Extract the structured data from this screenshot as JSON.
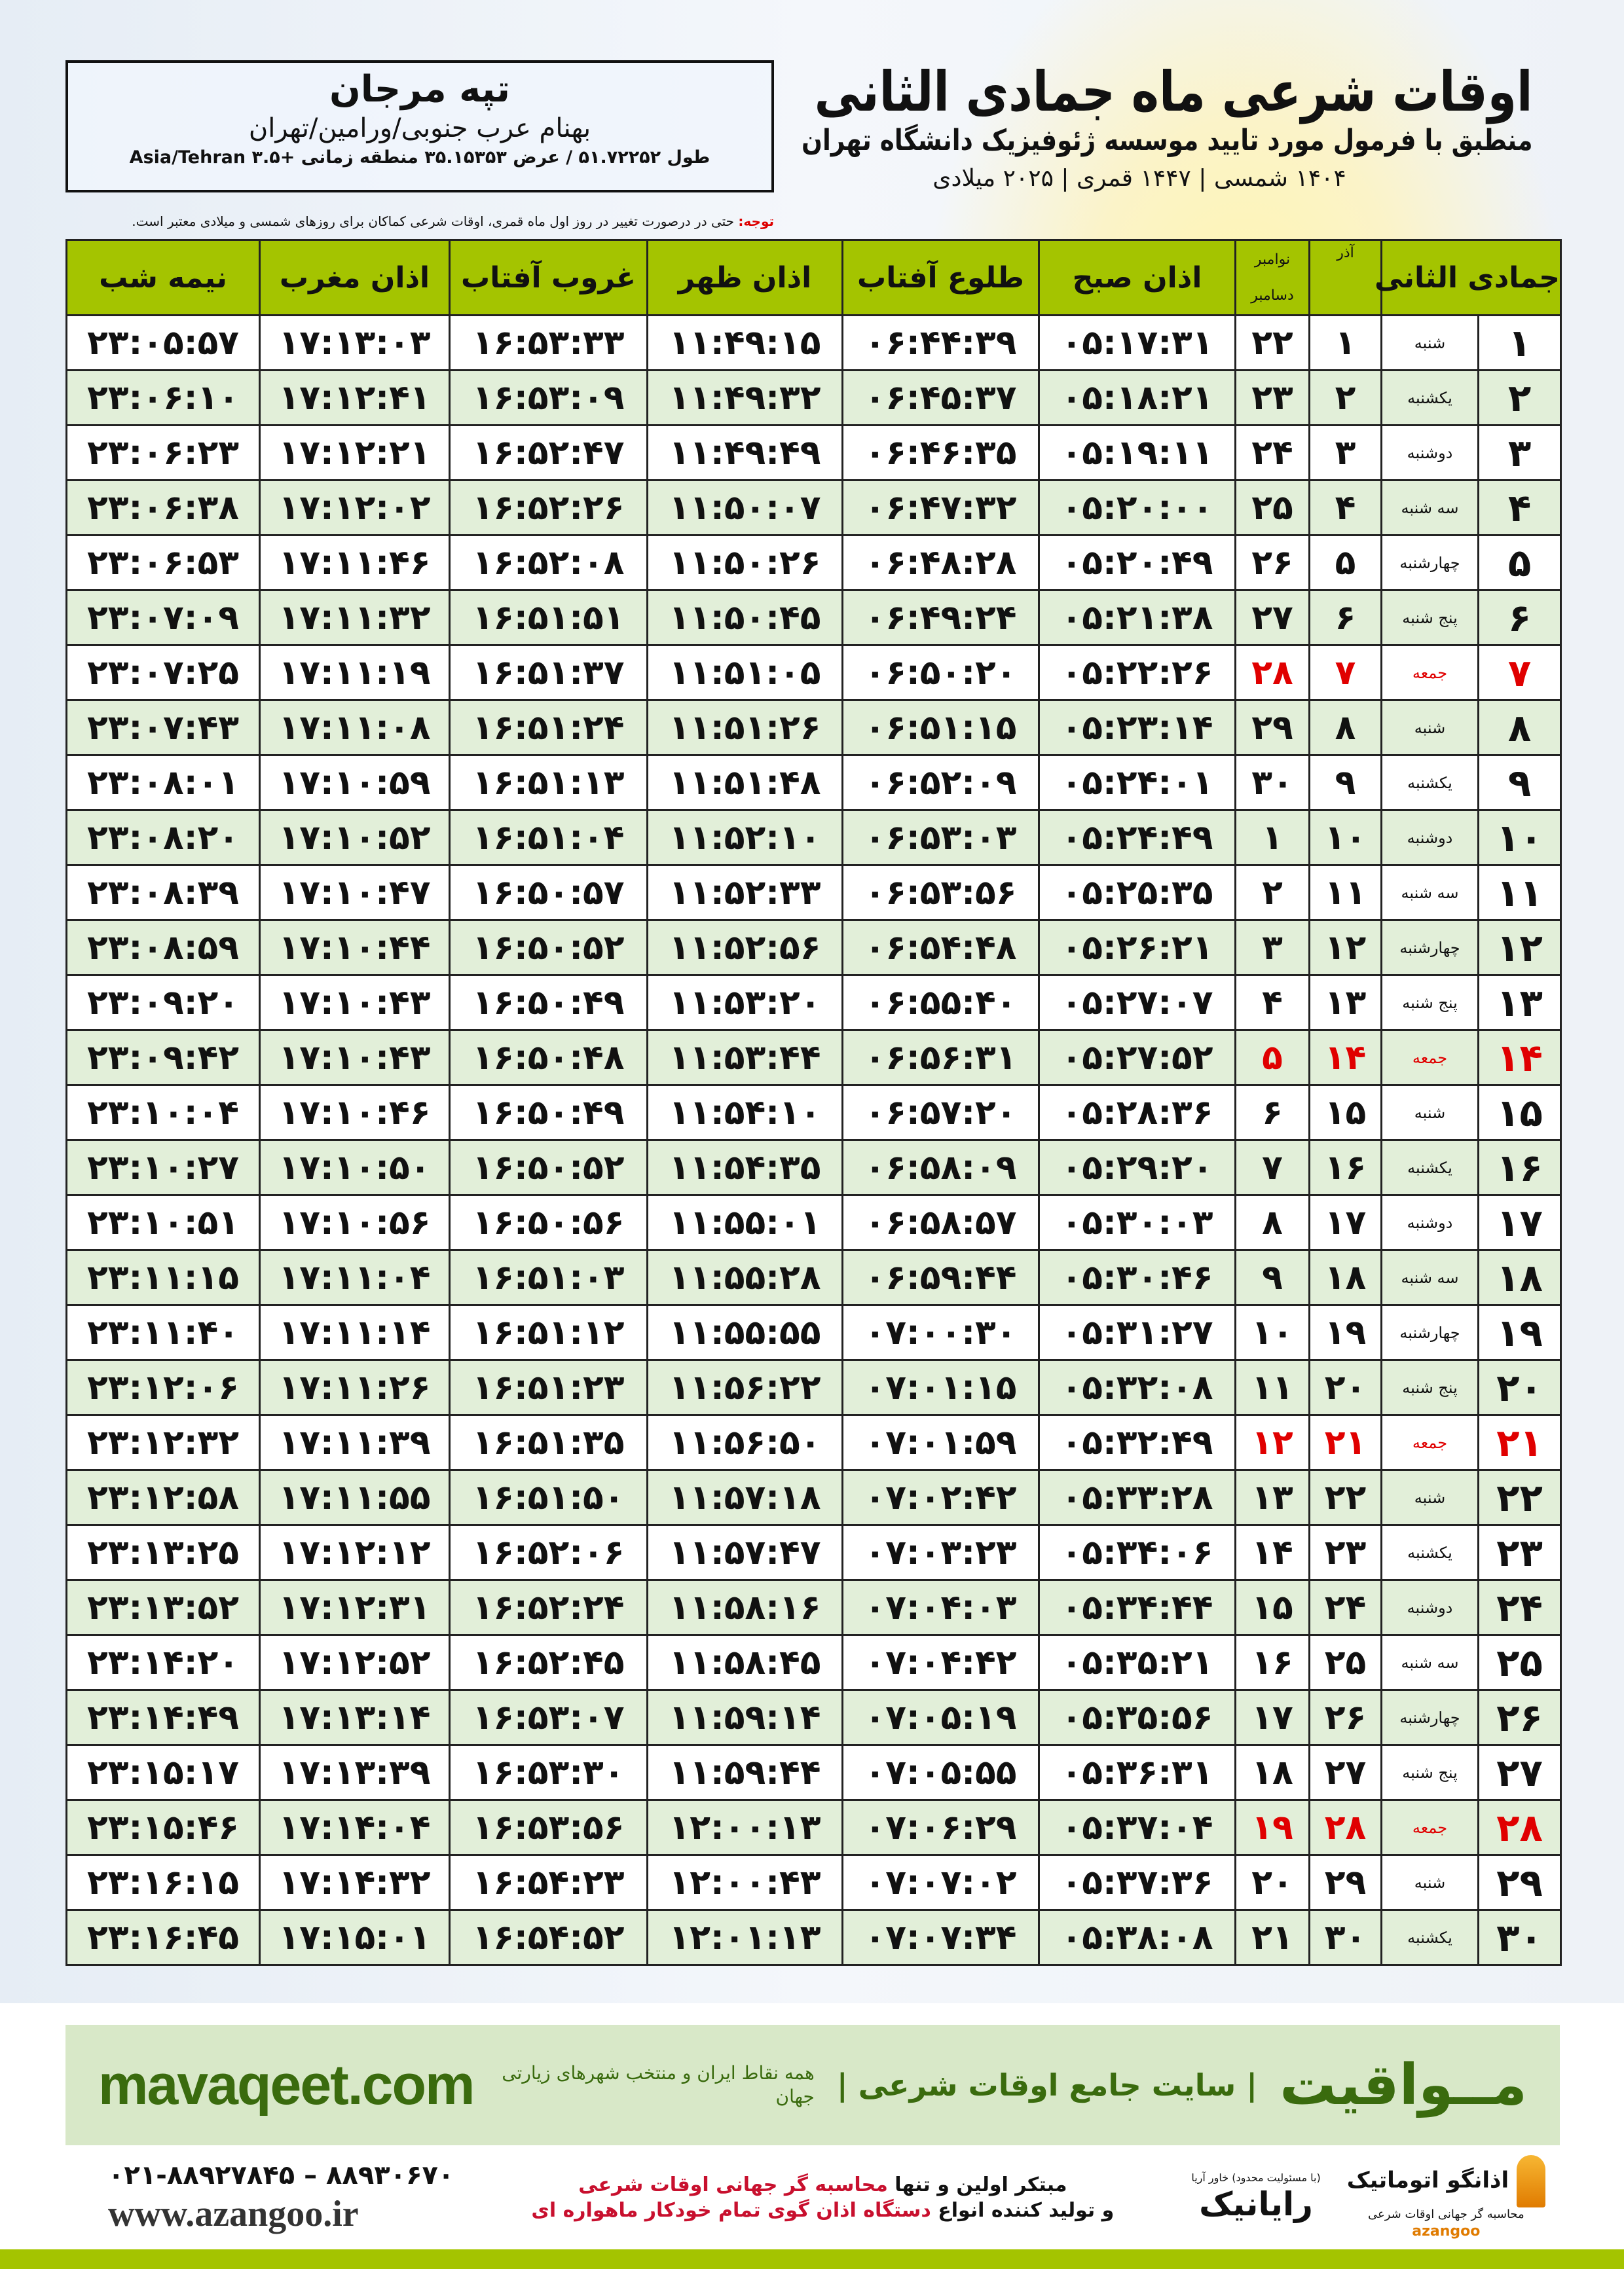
{
  "header": {
    "title": "اوقات شرعی ماه جمادی الثانی",
    "subtitle": "منطبق با فرمول مورد تایید موسسه ژئوفیزیک دانشگاه تهران",
    "years": "۱۴۰۴ شمسی | ۱۴۴۷ قمری | ۲۰۲۵ میلادی"
  },
  "location": {
    "city": "تپه مرجان",
    "region": "بهنام عرب جنوبی/ورامین/تهران",
    "coords": "طول ۵۱.۷۲۲۵۲ / عرض ۳۵.۱۵۳۵۳ منطقه زمانی +۳.۵ Asia/Tehran"
  },
  "note": {
    "label": "توجه:",
    "text": " حتی در درصورت تغییر در روز اول ماه قمری، اوقات شرعی کماکان برای روزهای شمسی و میلادی معتبر است."
  },
  "table": {
    "headers": {
      "hijri": "جمادی الثانی",
      "azar": "آذر",
      "greg_top": "نوامبر",
      "greg_bottom": "دسامبر",
      "sobh": "اذان صبح",
      "tolu": "طلوع آفتاب",
      "zohr": "اذان ظهر",
      "ghorub": "غروب آفتاب",
      "maghrib": "اذان مغرب",
      "nime": "نیمه شب"
    },
    "friday_color": "#e00000",
    "rows": [
      [
        "۱",
        "شنبه",
        "۱",
        "۲۲",
        "۰۵:۱۷:۳۱",
        "۰۶:۴۴:۳۹",
        "۱۱:۴۹:۱۵",
        "۱۶:۵۳:۳۳",
        "۱۷:۱۳:۰۳",
        "۲۳:۰۵:۵۷"
      ],
      [
        "۲",
        "یکشنبه",
        "۲",
        "۲۳",
        "۰۵:۱۸:۲۱",
        "۰۶:۴۵:۳۷",
        "۱۱:۴۹:۳۲",
        "۱۶:۵۳:۰۹",
        "۱۷:۱۲:۴۱",
        "۲۳:۰۶:۱۰"
      ],
      [
        "۳",
        "دوشنبه",
        "۳",
        "۲۴",
        "۰۵:۱۹:۱۱",
        "۰۶:۴۶:۳۵",
        "۱۱:۴۹:۴۹",
        "۱۶:۵۲:۴۷",
        "۱۷:۱۲:۲۱",
        "۲۳:۰۶:۲۳"
      ],
      [
        "۴",
        "سه شنبه",
        "۴",
        "۲۵",
        "۰۵:۲۰:۰۰",
        "۰۶:۴۷:۳۲",
        "۱۱:۵۰:۰۷",
        "۱۶:۵۲:۲۶",
        "۱۷:۱۲:۰۲",
        "۲۳:۰۶:۳۸"
      ],
      [
        "۵",
        "چهارشنبه",
        "۵",
        "۲۶",
        "۰۵:۲۰:۴۹",
        "۰۶:۴۸:۲۸",
        "۱۱:۵۰:۲۶",
        "۱۶:۵۲:۰۸",
        "۱۷:۱۱:۴۶",
        "۲۳:۰۶:۵۳"
      ],
      [
        "۶",
        "پنج شنبه",
        "۶",
        "۲۷",
        "۰۵:۲۱:۳۸",
        "۰۶:۴۹:۲۴",
        "۱۱:۵۰:۴۵",
        "۱۶:۵۱:۵۱",
        "۱۷:۱۱:۳۲",
        "۲۳:۰۷:۰۹"
      ],
      [
        "۷",
        "جمعه",
        "۷",
        "۲۸",
        "۰۵:۲۲:۲۶",
        "۰۶:۵۰:۲۰",
        "۱۱:۵۱:۰۵",
        "۱۶:۵۱:۳۷",
        "۱۷:۱۱:۱۹",
        "۲۳:۰۷:۲۵"
      ],
      [
        "۸",
        "شنبه",
        "۸",
        "۲۹",
        "۰۵:۲۳:۱۴",
        "۰۶:۵۱:۱۵",
        "۱۱:۵۱:۲۶",
        "۱۶:۵۱:۲۴",
        "۱۷:۱۱:۰۸",
        "۲۳:۰۷:۴۳"
      ],
      [
        "۹",
        "یکشنبه",
        "۹",
        "۳۰",
        "۰۵:۲۴:۰۱",
        "۰۶:۵۲:۰۹",
        "۱۱:۵۱:۴۸",
        "۱۶:۵۱:۱۳",
        "۱۷:۱۰:۵۹",
        "۲۳:۰۸:۰۱"
      ],
      [
        "۱۰",
        "دوشنبه",
        "۱۰",
        "۱",
        "۰۵:۲۴:۴۹",
        "۰۶:۵۳:۰۳",
        "۱۱:۵۲:۱۰",
        "۱۶:۵۱:۰۴",
        "۱۷:۱۰:۵۲",
        "۲۳:۰۸:۲۰"
      ],
      [
        "۱۱",
        "سه شنبه",
        "۱۱",
        "۲",
        "۰۵:۲۵:۳۵",
        "۰۶:۵۳:۵۶",
        "۱۱:۵۲:۳۳",
        "۱۶:۵۰:۵۷",
        "۱۷:۱۰:۴۷",
        "۲۳:۰۸:۳۹"
      ],
      [
        "۱۲",
        "چهارشنبه",
        "۱۲",
        "۳",
        "۰۵:۲۶:۲۱",
        "۰۶:۵۴:۴۸",
        "۱۱:۵۲:۵۶",
        "۱۶:۵۰:۵۲",
        "۱۷:۱۰:۴۴",
        "۲۳:۰۸:۵۹"
      ],
      [
        "۱۳",
        "پنج شنبه",
        "۱۳",
        "۴",
        "۰۵:۲۷:۰۷",
        "۰۶:۵۵:۴۰",
        "۱۱:۵۳:۲۰",
        "۱۶:۵۰:۴۹",
        "۱۷:۱۰:۴۳",
        "۲۳:۰۹:۲۰"
      ],
      [
        "۱۴",
        "جمعه",
        "۱۴",
        "۵",
        "۰۵:۲۷:۵۲",
        "۰۶:۵۶:۳۱",
        "۱۱:۵۳:۴۴",
        "۱۶:۵۰:۴۸",
        "۱۷:۱۰:۴۳",
        "۲۳:۰۹:۴۲"
      ],
      [
        "۱۵",
        "شنبه",
        "۱۵",
        "۶",
        "۰۵:۲۸:۳۶",
        "۰۶:۵۷:۲۰",
        "۱۱:۵۴:۱۰",
        "۱۶:۵۰:۴۹",
        "۱۷:۱۰:۴۶",
        "۲۳:۱۰:۰۴"
      ],
      [
        "۱۶",
        "یکشنبه",
        "۱۶",
        "۷",
        "۰۵:۲۹:۲۰",
        "۰۶:۵۸:۰۹",
        "۱۱:۵۴:۳۵",
        "۱۶:۵۰:۵۲",
        "۱۷:۱۰:۵۰",
        "۲۳:۱۰:۲۷"
      ],
      [
        "۱۷",
        "دوشنبه",
        "۱۷",
        "۸",
        "۰۵:۳۰:۰۳",
        "۰۶:۵۸:۵۷",
        "۱۱:۵۵:۰۱",
        "۱۶:۵۰:۵۶",
        "۱۷:۱۰:۵۶",
        "۲۳:۱۰:۵۱"
      ],
      [
        "۱۸",
        "سه شنبه",
        "۱۸",
        "۹",
        "۰۵:۳۰:۴۶",
        "۰۶:۵۹:۴۴",
        "۱۱:۵۵:۲۸",
        "۱۶:۵۱:۰۳",
        "۱۷:۱۱:۰۴",
        "۲۳:۱۱:۱۵"
      ],
      [
        "۱۹",
        "چهارشنبه",
        "۱۹",
        "۱۰",
        "۰۵:۳۱:۲۷",
        "۰۷:۰۰:۳۰",
        "۱۱:۵۵:۵۵",
        "۱۶:۵۱:۱۲",
        "۱۷:۱۱:۱۴",
        "۲۳:۱۱:۴۰"
      ],
      [
        "۲۰",
        "پنج شنبه",
        "۲۰",
        "۱۱",
        "۰۵:۳۲:۰۸",
        "۰۷:۰۱:۱۵",
        "۱۱:۵۶:۲۲",
        "۱۶:۵۱:۲۳",
        "۱۷:۱۱:۲۶",
        "۲۳:۱۲:۰۶"
      ],
      [
        "۲۱",
        "جمعه",
        "۲۱",
        "۱۲",
        "۰۵:۳۲:۴۹",
        "۰۷:۰۱:۵۹",
        "۱۱:۵۶:۵۰",
        "۱۶:۵۱:۳۵",
        "۱۷:۱۱:۳۹",
        "۲۳:۱۲:۳۲"
      ],
      [
        "۲۲",
        "شنبه",
        "۲۲",
        "۱۳",
        "۰۵:۳۳:۲۸",
        "۰۷:۰۲:۴۲",
        "۱۱:۵۷:۱۸",
        "۱۶:۵۱:۵۰",
        "۱۷:۱۱:۵۵",
        "۲۳:۱۲:۵۸"
      ],
      [
        "۲۳",
        "یکشنبه",
        "۲۳",
        "۱۴",
        "۰۵:۳۴:۰۶",
        "۰۷:۰۳:۲۳",
        "۱۱:۵۷:۴۷",
        "۱۶:۵۲:۰۶",
        "۱۷:۱۲:۱۲",
        "۲۳:۱۳:۲۵"
      ],
      [
        "۲۴",
        "دوشنبه",
        "۲۴",
        "۱۵",
        "۰۵:۳۴:۴۴",
        "۰۷:۰۴:۰۳",
        "۱۱:۵۸:۱۶",
        "۱۶:۵۲:۲۴",
        "۱۷:۱۲:۳۱",
        "۲۳:۱۳:۵۲"
      ],
      [
        "۲۵",
        "سه شنبه",
        "۲۵",
        "۱۶",
        "۰۵:۳۵:۲۱",
        "۰۷:۰۴:۴۲",
        "۱۱:۵۸:۴۵",
        "۱۶:۵۲:۴۵",
        "۱۷:۱۲:۵۲",
        "۲۳:۱۴:۲۰"
      ],
      [
        "۲۶",
        "چهارشنبه",
        "۲۶",
        "۱۷",
        "۰۵:۳۵:۵۶",
        "۰۷:۰۵:۱۹",
        "۱۱:۵۹:۱۴",
        "۱۶:۵۳:۰۷",
        "۱۷:۱۳:۱۴",
        "۲۳:۱۴:۴۹"
      ],
      [
        "۲۷",
        "پنج شنبه",
        "۲۷",
        "۱۸",
        "۰۵:۳۶:۳۱",
        "۰۷:۰۵:۵۵",
        "۱۱:۵۹:۴۴",
        "۱۶:۵۳:۳۰",
        "۱۷:۱۳:۳۹",
        "۲۳:۱۵:۱۷"
      ],
      [
        "۲۸",
        "جمعه",
        "۲۸",
        "۱۹",
        "۰۵:۳۷:۰۴",
        "۰۷:۰۶:۲۹",
        "۱۲:۰۰:۱۳",
        "۱۶:۵۳:۵۶",
        "۱۷:۱۴:۰۴",
        "۲۳:۱۵:۴۶"
      ],
      [
        "۲۹",
        "شنبه",
        "۲۹",
        "۲۰",
        "۰۵:۳۷:۳۶",
        "۰۷:۰۷:۰۲",
        "۱۲:۰۰:۴۳",
        "۱۶:۵۴:۲۳",
        "۱۷:۱۴:۳۲",
        "۲۳:۱۶:۱۵"
      ],
      [
        "۳۰",
        "یکشنبه",
        "۳۰",
        "۲۱",
        "۰۵:۳۸:۰۸",
        "۰۷:۰۷:۳۴",
        "۱۲:۰۱:۱۳",
        "۱۶:۵۴:۵۲",
        "۱۷:۱۵:۰۱",
        "۲۳:۱۶:۴۵"
      ]
    ]
  },
  "banner": {
    "brand": "مــواقیت",
    "tagline": "| سایت جامع اوقات شرعی |",
    "sub": "همه نقاط ایران و منتخب شهرهای زیارتی جهان",
    "site": "mavaqeet.com"
  },
  "footer": {
    "phone": "۰۲۱-۸۸۹۲۷۸۴۵ – ۸۸۹۳۰۶۷۰",
    "web": "www.azangoo.ir",
    "promo_line1_a": "مبتکر اولین و تنها ",
    "promo_line1_b": "محاسبه گر جهانی اوقات شرعی",
    "promo_line2_a": "و تولید کننده انواع ",
    "promo_line2_b": "دستگاه اذان گوی تمام خودکار ماهواره ای",
    "logo_rayanik": "رایانیک",
    "logo_rayanik_sub": "(با مسئولیت محدود) خاور آریا",
    "logo_azangoo": "اذانگو اتوماتیک",
    "logo_azangoo_sub": "محاسبه گر جهانی اوقات شرعی",
    "logo_azangoo_en": "azangoo"
  }
}
